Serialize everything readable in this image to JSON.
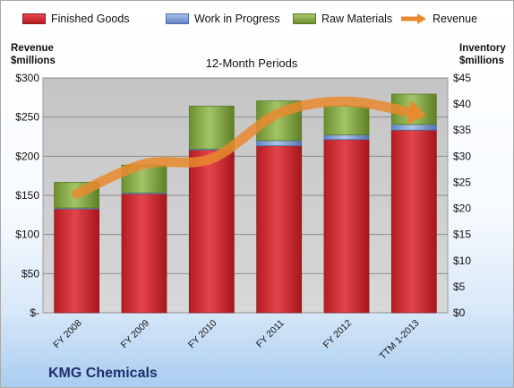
{
  "chart_data": {
    "type": "bar",
    "title": "12-Month Periods",
    "company": "KMG Chemicals",
    "categories": [
      "FY 2008",
      "FY 2009",
      "FY 2010",
      "FY 2011",
      "FY 2012",
      "TTM 1-2013"
    ],
    "bar_series": [
      {
        "name": "Finished Goods",
        "color": "#d9262e",
        "values": [
          19.9,
          22.8,
          31.2,
          32.0,
          33.2,
          35.0
        ]
      },
      {
        "name": "Work in Progress",
        "color": "#7fa0d8",
        "values": [
          0.2,
          0.2,
          0.2,
          1.0,
          0.9,
          1.1
        ]
      },
      {
        "name": "Raw Materials",
        "color": "#8db34a",
        "values": [
          4.9,
          5.3,
          8.2,
          7.6,
          5.5,
          5.8
        ]
      }
    ],
    "line_series": {
      "name": "Revenue",
      "color": "#e98a2d",
      "values": [
        152,
        190,
        197,
        255,
        270,
        255
      ]
    },
    "left_axis": {
      "title": [
        "Revenue",
        "$millions"
      ],
      "min": 0,
      "max": 300,
      "ticks": [
        0,
        50,
        100,
        150,
        200,
        250,
        300
      ],
      "tick_labels": [
        "$-",
        "$50",
        "$100",
        "$150",
        "$200",
        "$250",
        "$300"
      ]
    },
    "right_axis": {
      "title": [
        "Inventory",
        "$millions"
      ],
      "min": 0,
      "max": 45,
      "ticks": [
        0,
        5,
        10,
        15,
        20,
        25,
        30,
        35,
        40,
        45
      ],
      "tick_labels": [
        "$0",
        "$5",
        "$10",
        "$15",
        "$20",
        "$25",
        "$30",
        "$35",
        "$40",
        "$45"
      ]
    },
    "grid": true,
    "legend_position": "top"
  }
}
